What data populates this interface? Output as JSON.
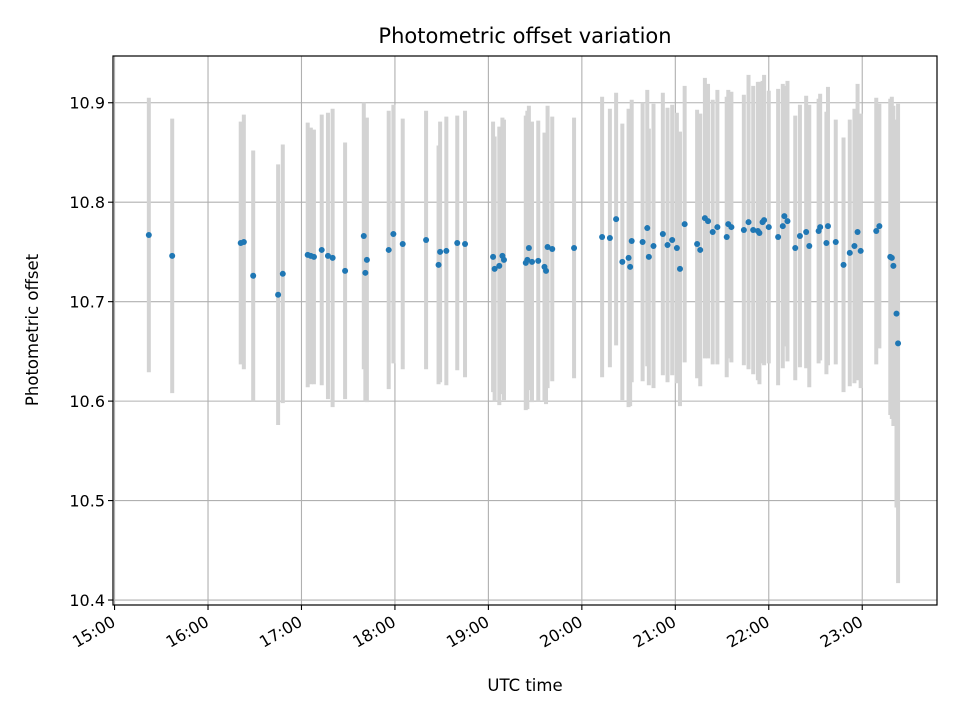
{
  "chart_data": {
    "type": "scatter",
    "title": "Photometric offset variation",
    "xlabel": "UTC time",
    "ylabel": "Photometric offset",
    "xlim": [
      "14:59",
      "23:48"
    ],
    "ylim": [
      10.395,
      10.947
    ],
    "x_ticks": [
      "15:00",
      "16:00",
      "17:00",
      "18:00",
      "19:00",
      "20:00",
      "21:00",
      "22:00",
      "23:00"
    ],
    "y_ticks": [
      "10.4",
      "10.5",
      "10.6",
      "10.7",
      "10.8",
      "10.9"
    ],
    "grid": true,
    "colors": {
      "points": "#1f77b4",
      "error_bars": "#d3d3d3",
      "grid": "#b0b0b0"
    },
    "series": [
      {
        "x": [
          "15:22",
          "15:37",
          "16:21",
          "16:23",
          "16:29",
          "16:45",
          "16:48",
          "17:04",
          "17:06",
          "17:08",
          "17:13",
          "17:17",
          "17:20",
          "17:28",
          "17:40",
          "17:41",
          "17:42",
          "17:56",
          "17:59",
          "18:05",
          "18:20",
          "18:28",
          "18:29",
          "18:33",
          "18:40",
          "18:45",
          "19:03",
          "19:04",
          "19:07",
          "19:09",
          "19:10",
          "19:24",
          "19:25",
          "19:26",
          "19:28",
          "19:32",
          "19:36",
          "19:37",
          "19:38",
          "19:41",
          "19:55",
          "20:13",
          "20:18",
          "20:22",
          "20:26",
          "20:30",
          "20:31",
          "20:32",
          "20:39",
          "20:42",
          "20:43",
          "20:46",
          "20:52",
          "20:55",
          "20:58",
          "21:01",
          "21:03",
          "21:06",
          "21:14",
          "21:16",
          "21:19",
          "21:21",
          "21:24",
          "21:27",
          "21:33",
          "21:34",
          "21:36",
          "21:44",
          "21:47",
          "21:50",
          "21:53",
          "21:54",
          "21:56",
          "21:57",
          "22:00",
          "22:06",
          "22:09",
          "22:10",
          "22:12",
          "22:17",
          "22:20",
          "22:24",
          "22:26",
          "22:32",
          "22:33",
          "22:37",
          "22:38",
          "22:43",
          "22:48",
          "22:52",
          "22:55",
          "22:57",
          "22:59",
          "23:09",
          "23:11",
          "23:18",
          "23:19",
          "23:20",
          "23:22",
          "23:23"
        ],
        "y": [
          10.767,
          10.746,
          10.759,
          10.76,
          10.726,
          10.707,
          10.728,
          10.747,
          10.746,
          10.745,
          10.752,
          10.746,
          10.744,
          10.731,
          10.766,
          10.729,
          10.742,
          10.752,
          10.768,
          10.758,
          10.762,
          10.737,
          10.75,
          10.751,
          10.759,
          10.758,
          10.745,
          10.733,
          10.736,
          10.746,
          10.742,
          10.739,
          10.742,
          10.754,
          10.74,
          10.741,
          10.735,
          10.731,
          10.755,
          10.753,
          10.754,
          10.765,
          10.764,
          10.783,
          10.74,
          10.744,
          10.735,
          10.761,
          10.76,
          10.774,
          10.745,
          10.756,
          10.768,
          10.757,
          10.762,
          10.754,
          10.733,
          10.778,
          10.758,
          10.752,
          10.784,
          10.781,
          10.77,
          10.775,
          10.765,
          10.778,
          10.775,
          10.772,
          10.78,
          10.772,
          10.771,
          10.769,
          10.78,
          10.782,
          10.775,
          10.765,
          10.776,
          10.786,
          10.781,
          10.754,
          10.766,
          10.77,
          10.756,
          10.771,
          10.775,
          10.759,
          10.776,
          10.76,
          10.737,
          10.749,
          10.756,
          10.77,
          10.751,
          10.771,
          10.776,
          10.745,
          10.744,
          10.736,
          10.688,
          10.658
        ],
        "err": [
          0.138,
          0.138,
          0.122,
          0.128,
          0.126,
          0.131,
          0.13,
          0.133,
          0.129,
          0.128,
          0.136,
          0.144,
          0.15,
          0.129,
          0.134,
          0.129,
          0.143,
          0.14,
          0.13,
          0.126,
          0.13,
          0.12,
          0.131,
          0.135,
          0.128,
          0.134,
          0.136,
          0.133,
          0.14,
          0.139,
          0.141,
          0.148,
          0.15,
          0.143,
          0.141,
          0.141,
          0.135,
          0.134,
          0.142,
          0.133,
          0.131,
          0.141,
          0.13,
          0.127,
          0.139,
          0.15,
          0.14,
          0.142,
          0.14,
          0.139,
          0.129,
          0.143,
          0.142,
          0.138,
          0.136,
          0.136,
          0.138,
          0.139,
          0.135,
          0.137,
          0.141,
          0.138,
          0.133,
          0.138,
          0.141,
          0.135,
          0.136,
          0.136,
          0.148,
          0.145,
          0.15,
          0.152,
          0.142,
          0.146,
          0.137,
          0.149,
          0.143,
          0.131,
          0.141,
          0.133,
          0.132,
          0.137,
          0.142,
          0.133,
          0.134,
          0.132,
          0.14,
          0.123,
          0.128,
          0.134,
          0.138,
          0.149,
          0.138,
          0.134,
          0.123,
          0.159,
          0.162,
          0.161,
          0.195,
          0.241
        ]
      }
    ]
  }
}
